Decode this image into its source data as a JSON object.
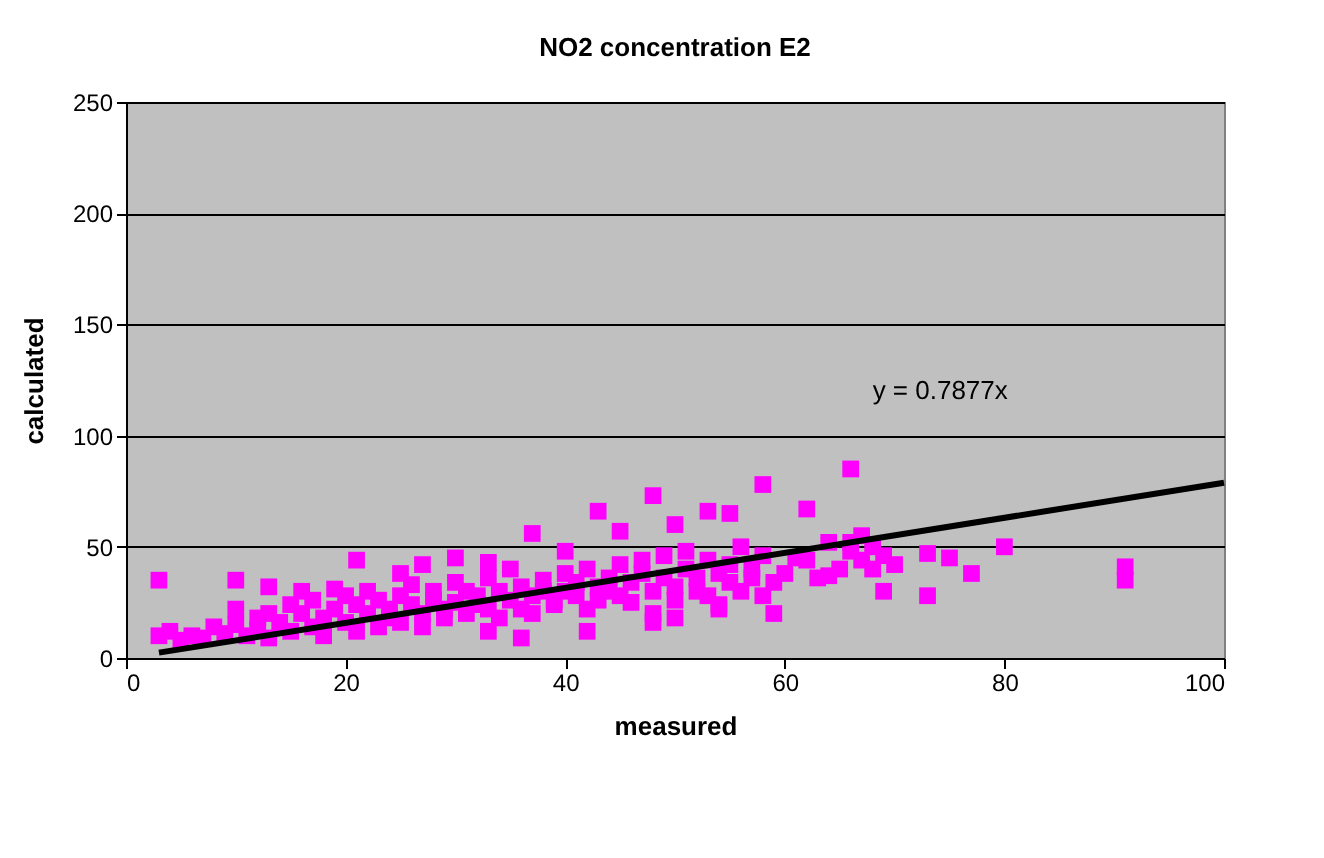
{
  "chart_data": {
    "type": "scatter",
    "title": "NO2 concentration E2",
    "xlabel": "measured",
    "ylabel": "calculated",
    "xlim": [
      0,
      100
    ],
    "xticks": [
      0,
      20,
      40,
      60,
      80,
      100
    ],
    "ylim": [
      0,
      250
    ],
    "yticks": [
      0,
      50,
      100,
      150,
      200,
      250
    ],
    "grid": "y",
    "legend": false,
    "marker": "square",
    "series": [
      {
        "color": "#ff00ff",
        "x": [
          3,
          3,
          4,
          5,
          6,
          7,
          8,
          9,
          10,
          10,
          11,
          12,
          12,
          13,
          13,
          14,
          15,
          15,
          16,
          16,
          17,
          17,
          18,
          18,
          19,
          19,
          20,
          20,
          21,
          21,
          22,
          22,
          23,
          23,
          24,
          24,
          25,
          25,
          26,
          26,
          27,
          27,
          28,
          28,
          29,
          29,
          30,
          30,
          31,
          31,
          32,
          32,
          33,
          33,
          34,
          34,
          35,
          35,
          36,
          36,
          37,
          37,
          38,
          38,
          39,
          39,
          40,
          40,
          41,
          41,
          42,
          42,
          43,
          43,
          44,
          44,
          45,
          45,
          46,
          46,
          47,
          47,
          48,
          48,
          49,
          49,
          50,
          50,
          51,
          51,
          52,
          52,
          53,
          53,
          54,
          54,
          55,
          55,
          56,
          56,
          57,
          57,
          58,
          58,
          59,
          60,
          61,
          62,
          63,
          64,
          65,
          66,
          66,
          67,
          67,
          68,
          68,
          69,
          69,
          70,
          73,
          73,
          75,
          77,
          80,
          91,
          91,
          10,
          13,
          21,
          25,
          27,
          30,
          33,
          37,
          40,
          43,
          45,
          48,
          50,
          53,
          55,
          58,
          62,
          66,
          36,
          42,
          48,
          33,
          50,
          54,
          59,
          64
        ],
        "values": [
          35,
          10,
          12,
          8,
          10,
          9,
          14,
          11,
          15,
          22,
          10,
          18,
          13,
          20,
          9,
          16,
          24,
          12,
          20,
          30,
          14,
          26,
          18,
          10,
          22,
          31,
          16,
          28,
          12,
          24,
          20,
          30,
          14,
          26,
          22,
          18,
          28,
          16,
          24,
          33,
          20,
          14,
          30,
          26,
          22,
          18,
          34,
          25,
          20,
          30,
          28,
          24,
          22,
          36,
          18,
          30,
          26,
          40,
          32,
          22,
          28,
          20,
          35,
          30,
          26,
          24,
          38,
          30,
          28,
          34,
          22,
          40,
          32,
          26,
          36,
          30,
          42,
          28,
          34,
          25,
          38,
          44,
          30,
          20,
          36,
          46,
          32,
          26,
          40,
          48,
          30,
          36,
          28,
          44,
          38,
          24,
          34,
          42,
          30,
          50,
          36,
          40,
          28,
          46,
          34,
          38,
          45,
          44,
          36,
          52,
          40,
          48,
          52,
          55,
          44,
          50,
          40,
          46,
          30,
          42,
          28,
          47,
          45,
          38,
          50,
          41,
          35,
          35,
          32,
          44,
          38,
          42,
          45,
          43,
          56,
          48,
          66,
          57,
          73,
          60,
          66,
          65,
          78,
          67,
          85,
          9,
          12,
          16,
          12,
          18,
          22,
          20,
          37
        ]
      },
      {
        "type": "line",
        "color": "#000000",
        "marker": "none",
        "x": [
          3,
          100
        ],
        "values": [
          2.4,
          78.8
        ]
      }
    ],
    "annotations": [
      "y = 0.7877x"
    ]
  }
}
